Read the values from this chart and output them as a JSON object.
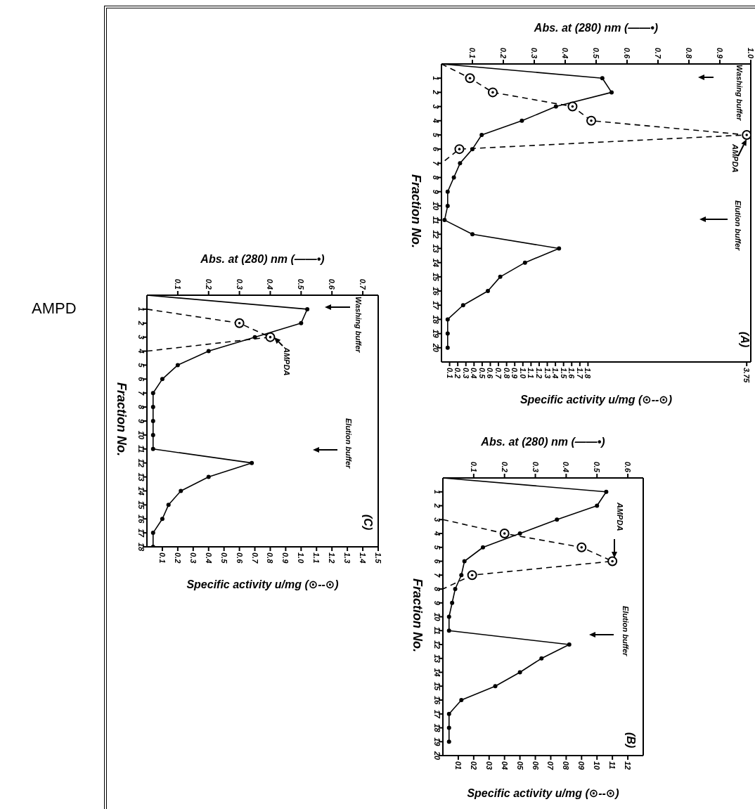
{
  "chart_data": [
    {
      "type": "line",
      "marker": "circle",
      "ylabel": "Fraction No.",
      "x2label": "Abs. at (280) nm (——•)",
      "xlabel": "Specific activity u/mg (⊙--⊙)",
      "ylim": [
        21,
        0
      ],
      "yticks": [
        1,
        2,
        3,
        4,
        5,
        6,
        7,
        8,
        9,
        10,
        11,
        12,
        13,
        14,
        15,
        16,
        17,
        18,
        19,
        20
      ],
      "x2lim": [
        0,
        1.0
      ],
      "x2ticks": [
        0.1,
        0.2,
        0.3,
        0.4,
        0.5,
        0.6,
        0.7,
        0.8,
        0.9,
        {
          "value": 1.0,
          "label": "1.0"
        }
      ],
      "xlim": [
        0,
        3.8
      ],
      "xticks": [
        0.1,
        0.2,
        0.3,
        0.4,
        0.5,
        0.6,
        0.7,
        0.8,
        0.9,
        {
          "value": 1.0,
          "label": "1.0"
        },
        1.1,
        1.2,
        1.3,
        1.4,
        1.5,
        1.6,
        1.7,
        1.8,
        3.75
      ],
      "series": [
        {
          "color": "#000000",
          "line_style": "solid",
          "axis": "x2",
          "x": [
            0,
            0.52,
            0.55,
            0.37,
            0.26,
            0.13,
            0.1,
            0.06,
            0.04,
            0.02,
            0.02,
            0.01,
            0.1,
            0.38,
            0.27,
            0.19,
            0.15,
            0.07,
            0.02,
            0.02,
            0.02
          ],
          "values": [
            0,
            1,
            2,
            3,
            4,
            5,
            6,
            7,
            8,
            9,
            10,
            11,
            12,
            13,
            14,
            15,
            16,
            17,
            18,
            19,
            20
          ]
        },
        {
          "color": "#000000",
          "line_style": "dashed",
          "x": [
            0,
            0.35,
            0.63,
            1.61,
            1.84,
            3.75,
            0.22,
            0
          ],
          "values": [
            0,
            1,
            2,
            3,
            4,
            5,
            6,
            7
          ]
        }
      ],
      "annotations": [
        "Washing buffer",
        "AMPDA",
        "Elution buffer",
        "(A)"
      ]
    },
    {
      "type": "line",
      "marker": "circle",
      "ylabel": "Fraction No.",
      "x2label": "Abs. at (280) nm (——•)",
      "xlabel": "Specific activity u/mg (⊙--⊙)",
      "ylim": [
        20,
        0
      ],
      "yticks": [
        1,
        2,
        3,
        4,
        5,
        6,
        7,
        8,
        9,
        10,
        11,
        12,
        13,
        14,
        15,
        16,
        17,
        18,
        19,
        20
      ],
      "x2lim": [
        0,
        0.65
      ],
      "x2ticks": [
        0.1,
        0.2,
        0.3,
        0.4,
        0.5,
        0.6
      ],
      "xlim": [
        0,
        13
      ],
      "xticks": [
        {
          "value": 1,
          "label": "01"
        },
        {
          "value": 2,
          "label": "02"
        },
        {
          "value": 3,
          "label": "03"
        },
        {
          "value": 4,
          "label": "04"
        },
        {
          "value": 5,
          "label": "05"
        },
        {
          "value": 6,
          "label": "06"
        },
        {
          "value": 7,
          "label": "07"
        },
        {
          "value": 8,
          "label": "08"
        },
        {
          "value": 9,
          "label": "09"
        },
        10,
        11,
        12
      ],
      "series": [
        {
          "color": "#000000",
          "line_style": "solid",
          "axis": "x2",
          "x": [
            0,
            0.53,
            0.5,
            0.37,
            0.25,
            0.13,
            0.07,
            0.06,
            0.04,
            0.03,
            0.02,
            0.02,
            0.41,
            0.32,
            0.25,
            0.17,
            0.06,
            0.02,
            0.02,
            0.02
          ],
          "values": [
            0,
            1,
            2,
            3,
            4,
            5,
            6,
            7,
            8,
            9,
            10,
            11,
            12,
            13,
            14,
            15,
            16,
            17,
            18,
            19
          ]
        },
        {
          "color": "#000000",
          "line_style": "dashed",
          "x": [
            0,
            4,
            9,
            11,
            1.9,
            0
          ],
          "values": [
            3,
            4,
            5,
            6,
            7,
            8
          ]
        }
      ],
      "annotations": [
        "AMPDA",
        "Elution buffer",
        "(B)"
      ]
    },
    {
      "type": "line",
      "marker": "circle",
      "ylabel": "Fraction No.",
      "x2label": "Abs. at (280) nm (——•)",
      "xlabel": "Specific activity u/mg (⊙--⊙)",
      "ylim": [
        18,
        0
      ],
      "yticks": [
        1,
        2,
        3,
        4,
        5,
        6,
        7,
        8,
        9,
        10,
        11,
        12,
        13,
        14,
        15,
        16,
        17,
        18
      ],
      "x2lim": [
        0,
        0.75
      ],
      "x2ticks": [
        0.1,
        0.2,
        0.3,
        0.4,
        0.5,
        0.6,
        0.7
      ],
      "xlim": [
        0,
        1.5
      ],
      "xticks": [
        0.1,
        0.2,
        0.3,
        0.4,
        0.5,
        0.6,
        0.7,
        0.8,
        0.9,
        {
          "value": 1.0,
          "label": "1.0"
        },
        1.1,
        1.2,
        1.3,
        1.4,
        1.5
      ],
      "series": [
        {
          "color": "#000000",
          "line_style": "solid",
          "axis": "x2",
          "x": [
            0,
            0.52,
            0.5,
            0.35,
            0.2,
            0.1,
            0.05,
            0.02,
            0.02,
            0.02,
            0.02,
            0.02,
            0.34,
            0.2,
            0.11,
            0.07,
            0.05,
            0.02,
            0.02
          ],
          "values": [
            0,
            1,
            2,
            3,
            4,
            5,
            6,
            7,
            8,
            9,
            10,
            11,
            12,
            13,
            14,
            15,
            16,
            17,
            18
          ]
        },
        {
          "color": "#000000",
          "line_style": "dashed",
          "x": [
            0,
            0.6,
            0.8,
            0
          ],
          "values": [
            1,
            2,
            3,
            4
          ]
        }
      ],
      "annotations": [
        "Washing buffer",
        "AMPDA",
        "Elution buffer",
        "(C)",
        "AMPD"
      ]
    }
  ]
}
